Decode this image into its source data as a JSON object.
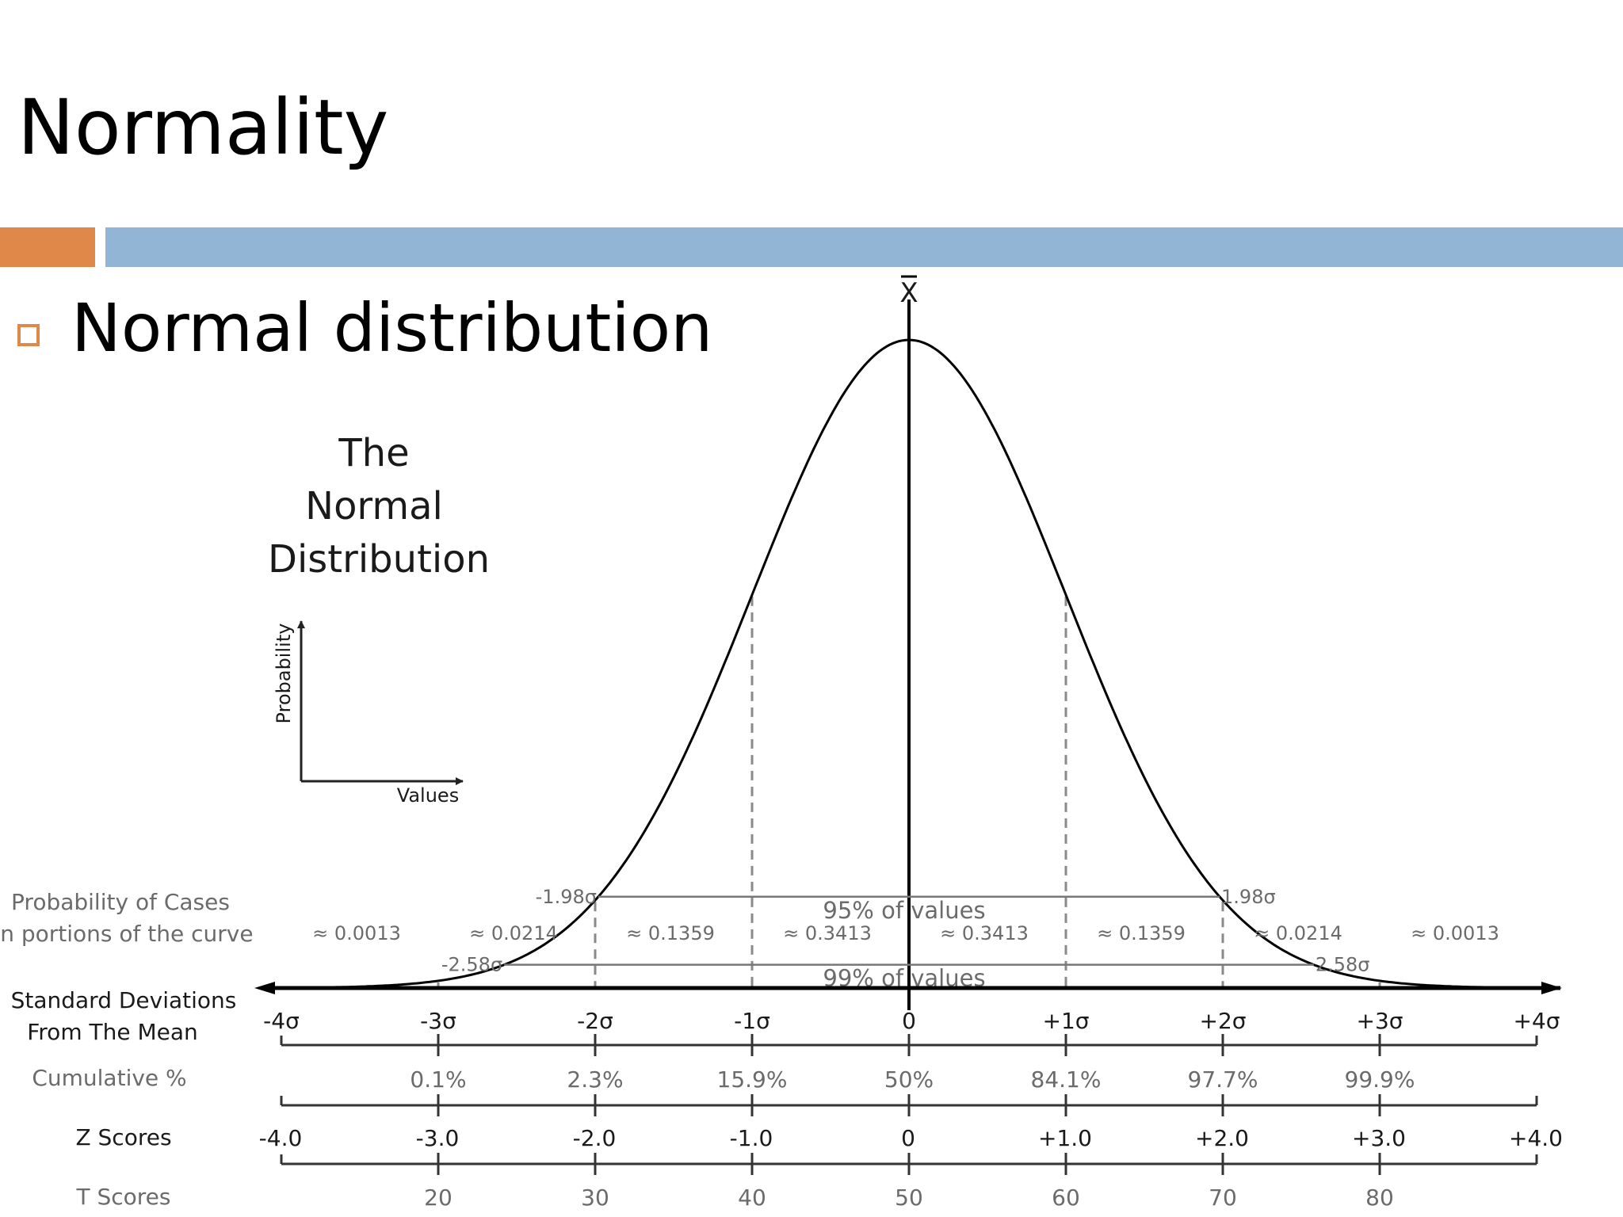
{
  "slide": {
    "title": "Normality",
    "bullet": "Normal distribution",
    "accent_orange": "#E0874A",
    "accent_blue": "#93B5D5"
  },
  "figure": {
    "title_lines": [
      "The",
      "Normal",
      "Distribution"
    ],
    "mean_symbol": "X",
    "inset_y_label": "Probability",
    "inset_x_label": "Values",
    "range_95": {
      "label": "95% of values",
      "left": "-1.98σ",
      "right": "1.98σ",
      "z": 1.98
    },
    "range_99": {
      "label": "99% of values",
      "left": "-2.58σ",
      "right": "2.58σ",
      "z": 2.58
    },
    "row_labels": {
      "probability_line1": "Probability of Cases",
      "probability_line2": "in portions of the curve",
      "std_line1": "Standard Deviations",
      "std_line2": "From The Mean",
      "cumulative": "Cumulative %",
      "z": "Z Scores",
      "t": "T Scores"
    },
    "probabilities": [
      "≈ 0.0013",
      "≈ 0.0214",
      "≈ 0.1359",
      "≈ 0.3413",
      "≈ 0.3413",
      "≈ 0.1359",
      "≈ 0.0214",
      "≈ 0.0013"
    ],
    "sd_labels": [
      "-4σ",
      "-3σ",
      "-2σ",
      "-1σ",
      "0",
      "+1σ",
      "+2σ",
      "+3σ",
      "+4σ"
    ],
    "cumulative": [
      "0.1%",
      "2.3%",
      "15.9%",
      "50%",
      "84.1%",
      "97.7%",
      "99.9%"
    ],
    "z_scores": [
      "-4.0",
      "-3.0",
      "-2.0",
      "-1.0",
      "0",
      "+1.0",
      "+2.0",
      "+3.0",
      "+4.0"
    ],
    "t_scores": [
      "20",
      "30",
      "40",
      "50",
      "60",
      "70",
      "80"
    ]
  }
}
